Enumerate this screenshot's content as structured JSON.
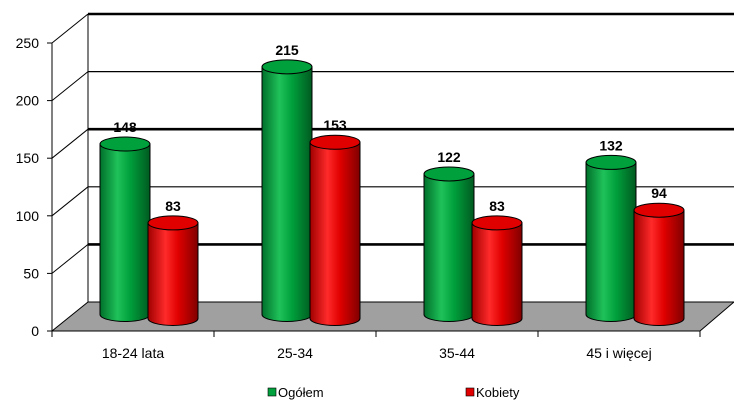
{
  "chart_data": {
    "type": "bar",
    "categories": [
      "18-24  lata",
      "25-34",
      "35-44",
      "45 i więcej"
    ],
    "series": [
      {
        "name": "Ogółem",
        "values": [
          148,
          215,
          122,
          132
        ],
        "color": "#00a03c"
      },
      {
        "name": "Kobiety",
        "values": [
          83,
          153,
          83,
          94
        ],
        "color": "#e00000"
      }
    ],
    "title": "",
    "xlabel": "",
    "ylabel": "",
    "ylim": [
      0,
      250
    ],
    "yticks": [
      0,
      50,
      100,
      150,
      200,
      250
    ],
    "grid": true,
    "legend": "bottom",
    "floor_color": "#a0a0a0"
  }
}
